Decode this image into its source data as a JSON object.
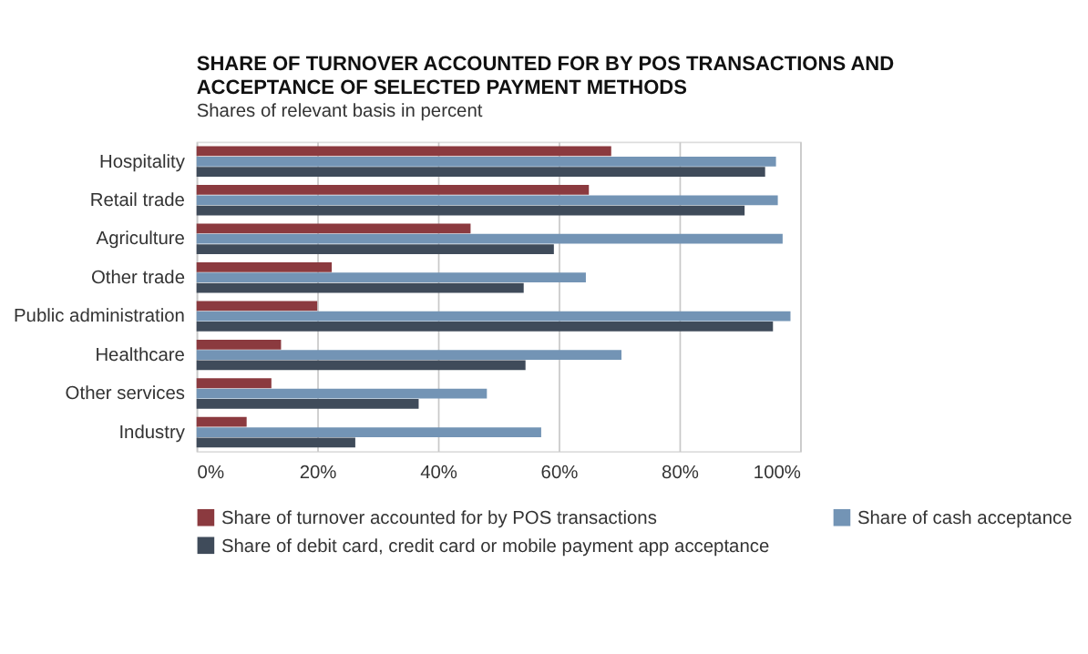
{
  "chart_data": {
    "type": "bar",
    "orientation": "horizontal",
    "title": [
      "SHARE OF TURNOVER ACCOUNTED FOR BY POS TRANSACTIONS AND",
      "ACCEPTANCE OF SELECTED PAYMENT METHODS"
    ],
    "subtitle": "Shares of relevant basis in percent",
    "categories": [
      "Hospitality",
      "Retail trade",
      "Agriculture",
      "Other trade",
      "Public administration",
      "Healthcare",
      "Other services",
      "Industry"
    ],
    "series": [
      {
        "name": "Share of turnover accounted for by POS transactions",
        "color": "#8b3a3f",
        "values": [
          68.7,
          65.0,
          45.4,
          22.4,
          20.0,
          14.0,
          12.4,
          8.3
        ]
      },
      {
        "name": "Share of cash acceptance",
        "color": "#7394b5",
        "values": [
          96.0,
          96.3,
          97.1,
          64.5,
          98.4,
          70.4,
          48.1,
          57.1
        ]
      },
      {
        "name": "Share of debit card, credit card or mobile payment app acceptance",
        "color": "#3f4b5a",
        "values": [
          94.2,
          90.8,
          59.2,
          54.2,
          95.5,
          54.5,
          36.8,
          26.3
        ]
      }
    ],
    "xlim": [
      0,
      100
    ],
    "xticks": [
      {
        "value": 0,
        "label": "0%"
      },
      {
        "value": 20,
        "label": "20%"
      },
      {
        "value": 40,
        "label": "40%"
      },
      {
        "value": 60,
        "label": "60%"
      },
      {
        "value": 80,
        "label": "80%"
      },
      {
        "value": 100,
        "label": "100%"
      }
    ],
    "grid": "x",
    "legend": "bottom"
  }
}
